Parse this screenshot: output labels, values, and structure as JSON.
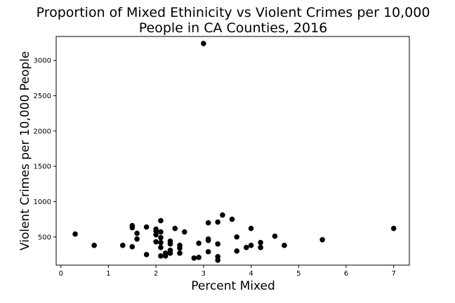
{
  "chart_data": {
    "type": "scatter",
    "title_line1": "Proportion of Mixed Ethinicity vs Violent Crimes per 10,000",
    "title_line2": "People in CA Counties, 2016",
    "xlabel": "Percent Mixed",
    "ylabel": "Violent Crimes per 10,000 People",
    "xlim": [
      -0.1,
      7.33
    ],
    "ylim": [
      100,
      3340
    ],
    "xticks": [
      0,
      1,
      2,
      3,
      4,
      5,
      6,
      7
    ],
    "yticks": [
      500,
      1000,
      1500,
      2000,
      2500,
      3000
    ],
    "marker_color": "#000000",
    "grid": false,
    "points": [
      {
        "x": 0.3,
        "y": 540
      },
      {
        "x": 0.7,
        "y": 380
      },
      {
        "x": 1.3,
        "y": 380
      },
      {
        "x": 1.5,
        "y": 660
      },
      {
        "x": 1.5,
        "y": 630
      },
      {
        "x": 1.5,
        "y": 360
      },
      {
        "x": 1.6,
        "y": 550
      },
      {
        "x": 1.6,
        "y": 470
      },
      {
        "x": 1.8,
        "y": 640
      },
      {
        "x": 1.8,
        "y": 250
      },
      {
        "x": 2.0,
        "y": 610
      },
      {
        "x": 2.0,
        "y": 580
      },
      {
        "x": 2.0,
        "y": 530
      },
      {
        "x": 2.0,
        "y": 430
      },
      {
        "x": 2.1,
        "y": 730
      },
      {
        "x": 2.1,
        "y": 570
      },
      {
        "x": 2.1,
        "y": 490
      },
      {
        "x": 2.1,
        "y": 420
      },
      {
        "x": 2.1,
        "y": 350
      },
      {
        "x": 2.1,
        "y": 230
      },
      {
        "x": 2.2,
        "y": 270
      },
      {
        "x": 2.2,
        "y": 230
      },
      {
        "x": 2.3,
        "y": 440
      },
      {
        "x": 2.3,
        "y": 400
      },
      {
        "x": 2.3,
        "y": 310
      },
      {
        "x": 2.3,
        "y": 270
      },
      {
        "x": 2.4,
        "y": 620
      },
      {
        "x": 2.5,
        "y": 380
      },
      {
        "x": 2.5,
        "y": 340
      },
      {
        "x": 2.5,
        "y": 270
      },
      {
        "x": 2.6,
        "y": 570
      },
      {
        "x": 2.8,
        "y": 200
      },
      {
        "x": 2.9,
        "y": 410
      },
      {
        "x": 2.9,
        "y": 210
      },
      {
        "x": 3.0,
        "y": 3240
      },
      {
        "x": 3.1,
        "y": 700
      },
      {
        "x": 3.1,
        "y": 470
      },
      {
        "x": 3.1,
        "y": 450
      },
      {
        "x": 3.1,
        "y": 290
      },
      {
        "x": 3.3,
        "y": 710
      },
      {
        "x": 3.3,
        "y": 400
      },
      {
        "x": 3.3,
        "y": 220
      },
      {
        "x": 3.3,
        "y": 170
      },
      {
        "x": 3.4,
        "y": 810
      },
      {
        "x": 3.6,
        "y": 750
      },
      {
        "x": 3.7,
        "y": 500
      },
      {
        "x": 3.7,
        "y": 300
      },
      {
        "x": 3.9,
        "y": 350
      },
      {
        "x": 4.0,
        "y": 620
      },
      {
        "x": 4.0,
        "y": 380
      },
      {
        "x": 4.2,
        "y": 420
      },
      {
        "x": 4.2,
        "y": 350
      },
      {
        "x": 4.5,
        "y": 510
      },
      {
        "x": 4.7,
        "y": 380
      },
      {
        "x": 5.5,
        "y": 460
      },
      {
        "x": 7.0,
        "y": 620
      }
    ]
  }
}
